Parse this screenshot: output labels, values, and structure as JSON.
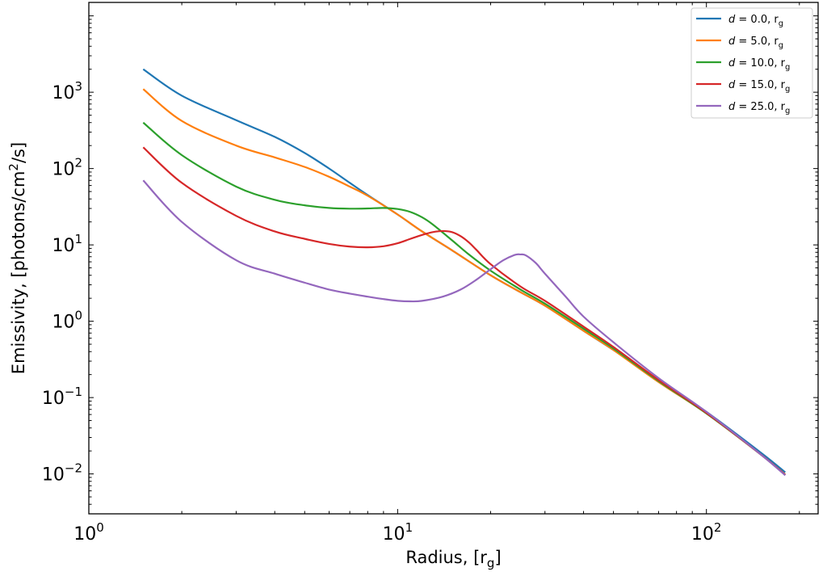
{
  "chart_data": {
    "type": "line",
    "xlabel": {
      "text": "Radius, [r",
      "sub": "g",
      "close": "]"
    },
    "ylabel": {
      "pre": "Emissivity, [photons/cm",
      "sup": "2",
      "post": "/s]"
    },
    "xscale": "log",
    "yscale": "log",
    "xlim": [
      1.0,
      230.0
    ],
    "ylim": [
      0.003,
      15000
    ],
    "grid": false,
    "legend_position": "top-right",
    "x_ticks": [
      {
        "value": 1,
        "base": "10",
        "exp": "0"
      },
      {
        "value": 10,
        "base": "10",
        "exp": "1"
      },
      {
        "value": 100,
        "base": "10",
        "exp": "2"
      }
    ],
    "y_ticks": [
      {
        "value": 0.01,
        "base": "10",
        "exp": "−2"
      },
      {
        "value": 0.1,
        "base": "10",
        "exp": "−1"
      },
      {
        "value": 1,
        "base": "10",
        "exp": "0"
      },
      {
        "value": 10,
        "base": "10",
        "exp": "1"
      },
      {
        "value": 100,
        "base": "10",
        "exp": "2"
      },
      {
        "value": 1000,
        "base": "10",
        "exp": "3"
      }
    ],
    "series": [
      {
        "name": "d = 0.0, rg",
        "legend": {
          "italic": "d",
          "text": " = 0.0, r",
          "sub": "g"
        },
        "color": "#1f77b4",
        "x": [
          1.5,
          2,
          3,
          4,
          5,
          6,
          7,
          8,
          10,
          12,
          15,
          20,
          25,
          30,
          40,
          50,
          70,
          100,
          150,
          180
        ],
        "y": [
          2000,
          900,
          430,
          260,
          160,
          100,
          65,
          45,
          25,
          15,
          8.5,
          4.0,
          2.4,
          1.6,
          0.75,
          0.42,
          0.17,
          0.065,
          0.019,
          0.0105
        ]
      },
      {
        "name": "d = 5.0, rg",
        "legend": {
          "italic": "d",
          "text": " = 5.0, r",
          "sub": "g"
        },
        "color": "#ff7f0e",
        "x": [
          1.5,
          2,
          3,
          4,
          5,
          6,
          7,
          8,
          10,
          12,
          15,
          20,
          25,
          30,
          40,
          50,
          70,
          100,
          150,
          180
        ],
        "y": [
          1100,
          420,
          200,
          140,
          105,
          78,
          58,
          44,
          25,
          15,
          8.5,
          4.0,
          2.4,
          1.6,
          0.75,
          0.42,
          0.16,
          0.062,
          0.018,
          0.0098
        ]
      },
      {
        "name": "d = 10.0, rg",
        "legend": {
          "italic": "d",
          "text": " = 10.0, r",
          "sub": "g"
        },
        "color": "#2ca02c",
        "x": [
          1.5,
          2,
          3,
          4,
          5,
          6,
          7,
          8,
          9,
          10,
          11,
          12,
          13,
          15,
          17,
          20,
          25,
          30,
          40,
          50,
          70,
          100,
          150,
          180
        ],
        "y": [
          400,
          150,
          58,
          39,
          33,
          30.5,
          29.8,
          30.0,
          30.5,
          29.5,
          27,
          23,
          18.5,
          11.5,
          7.5,
          4.6,
          2.6,
          1.7,
          0.8,
          0.44,
          0.165,
          0.062,
          0.018,
          0.0097
        ]
      },
      {
        "name": "d = 15.0, rg",
        "legend": {
          "italic": "d",
          "text": " = 15.0, r",
          "sub": "g"
        },
        "color": "#d62728",
        "x": [
          1.5,
          2,
          3,
          4,
          5,
          6,
          7,
          8,
          9,
          10,
          11,
          12,
          13,
          14,
          15,
          16,
          17,
          18,
          20,
          25,
          30,
          40,
          50,
          70,
          100,
          150,
          180
        ],
        "y": [
          190,
          65,
          24,
          15,
          12,
          10.3,
          9.5,
          9.3,
          9.6,
          10.5,
          12,
          13.5,
          14.7,
          15.2,
          14.7,
          13,
          10.8,
          8.6,
          5.6,
          2.85,
          1.85,
          0.85,
          0.46,
          0.17,
          0.063,
          0.018,
          0.0097
        ]
      },
      {
        "name": "d = 25.0, rg",
        "legend": {
          "italic": "d",
          "text": " = 25.0, r",
          "sub": "g"
        },
        "color": "#9467bd",
        "x": [
          1.5,
          2,
          3,
          4,
          5,
          6,
          7,
          8,
          9,
          10,
          11,
          12,
          14,
          16,
          18,
          20,
          22,
          24,
          25,
          26,
          28,
          30,
          35,
          40,
          50,
          70,
          100,
          150,
          180
        ],
        "y": [
          70,
          20,
          6.3,
          4.2,
          3.2,
          2.6,
          2.3,
          2.1,
          1.95,
          1.85,
          1.82,
          1.85,
          2.1,
          2.6,
          3.5,
          4.8,
          6.3,
          7.4,
          7.5,
          7.3,
          5.8,
          4.2,
          2.1,
          1.15,
          0.53,
          0.18,
          0.065,
          0.018,
          0.0096
        ]
      }
    ]
  }
}
